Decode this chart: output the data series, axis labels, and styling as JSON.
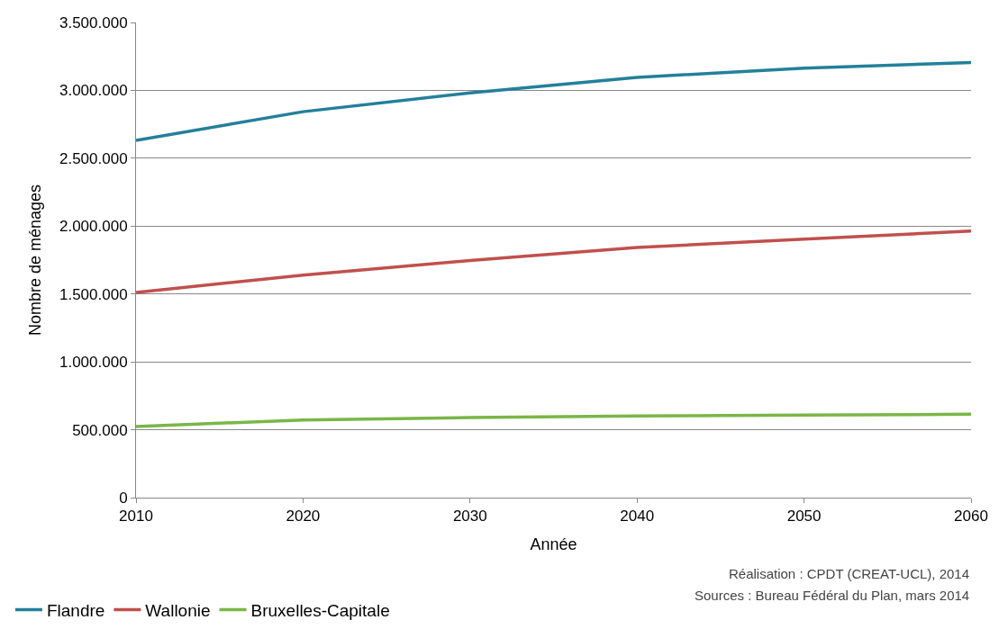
{
  "chart_data": {
    "type": "line",
    "xlabel": "Année",
    "ylabel": "Nombre de ménages",
    "x": [
      2010,
      2020,
      2030,
      2040,
      2050,
      2060
    ],
    "series": [
      {
        "name": "Flandre",
        "color": "#23809a",
        "values": [
          2632000,
          2843000,
          2982000,
          3096000,
          3163000,
          3205000
        ]
      },
      {
        "name": "Wallonie",
        "color": "#c0504d",
        "values": [
          1512000,
          1639000,
          1747000,
          1843000,
          1904000,
          1964000
        ]
      },
      {
        "name": "Bruxelles-Capitale",
        "color": "#7ab648",
        "values": [
          524000,
          572000,
          590000,
          602000,
          608000,
          614000
        ]
      }
    ],
    "xlim": [
      2010,
      2060
    ],
    "xticks": [
      2010,
      2020,
      2030,
      2040,
      2050,
      2060
    ],
    "ylim": [
      0,
      3500000
    ],
    "yticks": [
      0,
      {
        "value": 500000,
        "label": "500.000"
      },
      {
        "value": 1000000,
        "label": "1.000.000"
      },
      {
        "value": 1500000,
        "label": "1.500.000"
      },
      {
        "value": 2000000,
        "label": "2.000.000"
      },
      {
        "value": 2500000,
        "label": "2.500.000"
      },
      {
        "value": 3000000,
        "label": "3.000.000"
      },
      {
        "value": 3500000,
        "label": "3.500.000"
      }
    ],
    "grid": "y",
    "legend": "bottom left",
    "marker": "none",
    "line_style": "solid",
    "annotations": [
      "Réalisation : CPDT (CREAT-UCL), 2014",
      "Sources : Bureau Fédéral du Plan, mars 2014"
    ]
  }
}
